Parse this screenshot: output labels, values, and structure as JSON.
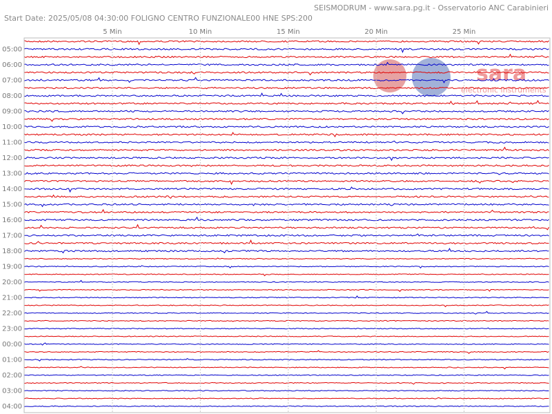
{
  "header": {
    "title": "SEISMODRUM - www.sara.pg.it - Osservatorio ANC Carabinieri",
    "subtitle": "Start Date: 2025/05/08 04:30:00 FOLIGNO CENTRO FUNZIONALE00 HNE  SPS:200"
  },
  "logo": {
    "brand": "sara",
    "tagline": "electronic instruments"
  },
  "chart_data": {
    "type": "helicorder",
    "xlim": [
      0,
      30
    ],
    "xticks": [
      {
        "value": 5,
        "label": "5 Min"
      },
      {
        "value": 10,
        "label": "10 Min"
      },
      {
        "value": 15,
        "label": "15 Min"
      },
      {
        "value": 20,
        "label": "20 Min"
      },
      {
        "value": 25,
        "label": "25 Min"
      }
    ],
    "rows": [
      "05:00",
      "06:00",
      "07:00",
      "08:00",
      "09:00",
      "10:00",
      "11:00",
      "12:00",
      "13:00",
      "14:00",
      "15:00",
      "16:00",
      "17:00",
      "18:00",
      "19:00",
      "20:00",
      "21:00",
      "22:00",
      "23:00",
      "00:00",
      "01:00",
      "02:00",
      "03:00",
      "04:00"
    ],
    "trace_colors": [
      "#e00000",
      "#0000cc"
    ],
    "grid": true
  }
}
